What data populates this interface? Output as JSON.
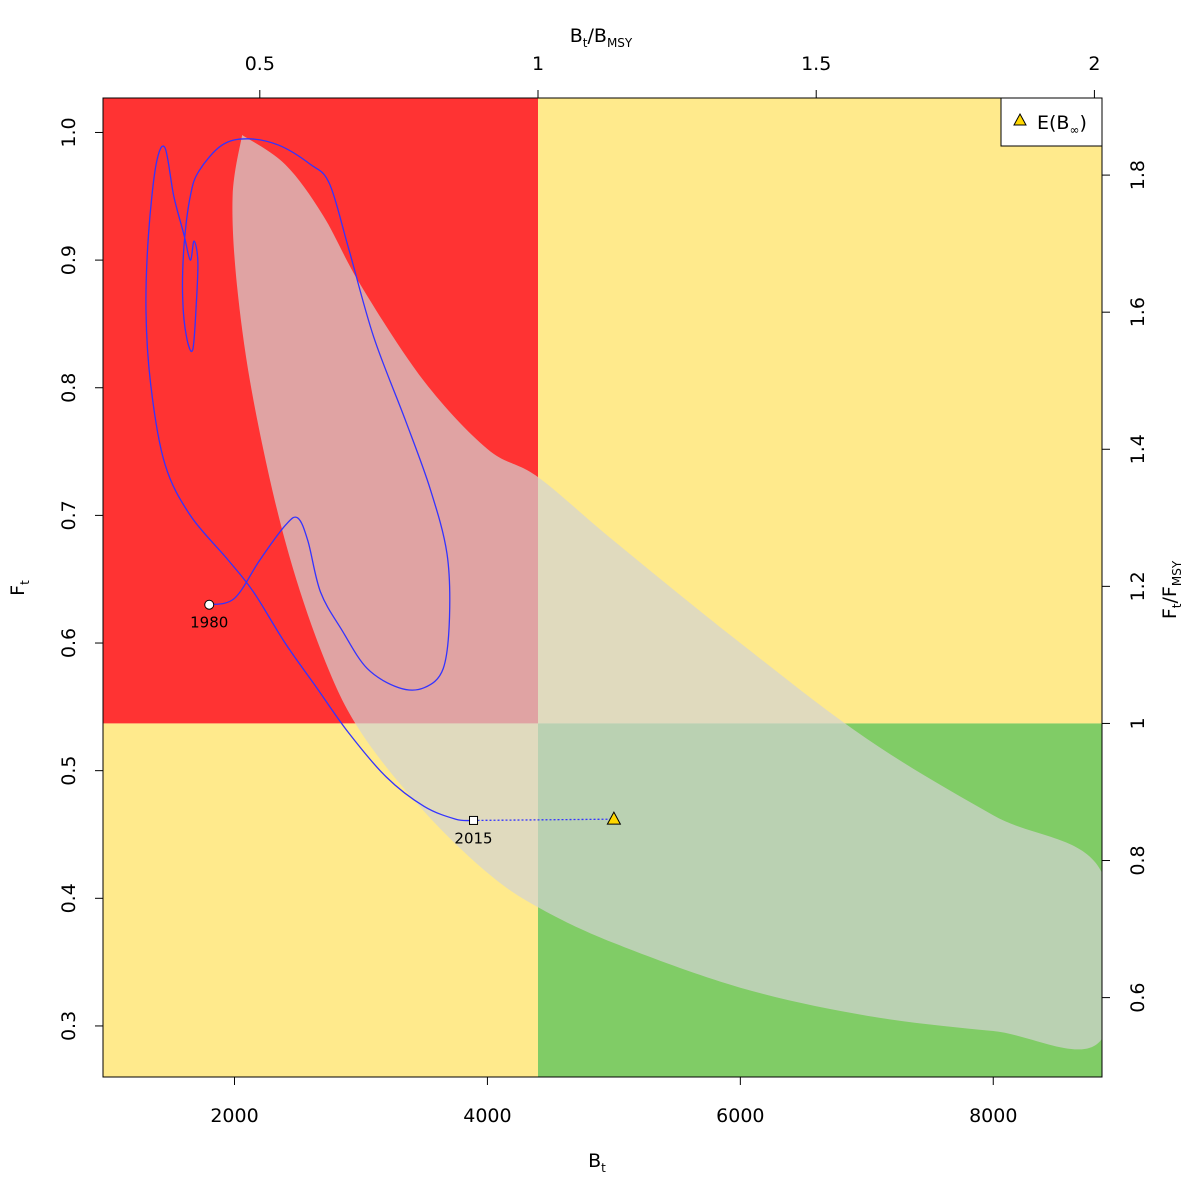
{
  "chart_data": {
    "type": "line",
    "xlabel": "B",
    "xlabel_sub": "t",
    "ylabel": "F",
    "ylabel_sub": "t",
    "top_label": {
      "num": "B",
      "num_sub": "t",
      "den": "B",
      "den_sub": "MSY"
    },
    "right_label": {
      "num": "F",
      "num_sub": "t",
      "den": "F",
      "den_sub": "MSY"
    },
    "xlim": [
      960,
      8860
    ],
    "ylim": [
      0.26,
      1.027
    ],
    "bmsy": 4400,
    "fmsy": 0.537,
    "x_ticks": [
      "2000",
      "4000",
      "6000",
      "8000"
    ],
    "y_ticks": [
      "0.3",
      "0.4",
      "0.5",
      "0.6",
      "0.7",
      "0.8",
      "0.9",
      "1.0"
    ],
    "top_ticks": [
      "0.5",
      "1",
      "1.5",
      "2"
    ],
    "right_ticks": [
      "0.6",
      "0.8",
      "1",
      "1.2",
      "1.4",
      "1.6",
      "1.8"
    ],
    "zone_colors": {
      "red": "#ff3333",
      "yellow": "#ffea8c",
      "green": "#80cc66",
      "region": "#d3d3d3",
      "trajectory": "#3333ff",
      "marker": "#ffd700"
    },
    "confidence_region": {
      "upper": [
        [
          2060,
          0.998
        ],
        [
          2400,
          0.975
        ],
        [
          2700,
          0.935
        ],
        [
          3000,
          0.88
        ],
        [
          3500,
          0.805
        ],
        [
          4000,
          0.752
        ],
        [
          4400,
          0.73
        ],
        [
          5000,
          0.68
        ],
        [
          6000,
          0.6
        ],
        [
          7000,
          0.525
        ],
        [
          8000,
          0.465
        ],
        [
          8860,
          0.42
        ]
      ],
      "lower": [
        [
          8860,
          0.29
        ],
        [
          8000,
          0.296
        ],
        [
          7000,
          0.308
        ],
        [
          6000,
          0.33
        ],
        [
          5000,
          0.365
        ],
        [
          4400,
          0.393
        ],
        [
          4000,
          0.42
        ],
        [
          3500,
          0.468
        ],
        [
          3000,
          0.53
        ],
        [
          2700,
          0.59
        ],
        [
          2400,
          0.68
        ],
        [
          2150,
          0.79
        ],
        [
          2020,
          0.88
        ],
        [
          1985,
          0.95
        ],
        [
          2060,
          0.998
        ]
      ]
    },
    "trajectory": [
      [
        1800,
        0.63
      ],
      [
        2000,
        0.635
      ],
      [
        2200,
        0.665
      ],
      [
        2400,
        0.692
      ],
      [
        2500,
        0.698
      ],
      [
        2580,
        0.68
      ],
      [
        2680,
        0.64
      ],
      [
        2850,
        0.61
      ],
      [
        3050,
        0.58
      ],
      [
        3300,
        0.565
      ],
      [
        3500,
        0.565
      ],
      [
        3650,
        0.58
      ],
      [
        3700,
        0.62
      ],
      [
        3680,
        0.67
      ],
      [
        3550,
        0.72
      ],
      [
        3350,
        0.775
      ],
      [
        3100,
        0.84
      ],
      [
        2900,
        0.91
      ],
      [
        2750,
        0.96
      ],
      [
        2600,
        0.975
      ],
      [
        2350,
        0.99
      ],
      [
        2100,
        0.995
      ],
      [
        1900,
        0.99
      ],
      [
        1720,
        0.97
      ],
      [
        1650,
        0.95
      ],
      [
        1600,
        0.91
      ],
      [
        1590,
        0.87
      ],
      [
        1620,
        0.84
      ],
      [
        1670,
        0.83
      ],
      [
        1700,
        0.87
      ],
      [
        1710,
        0.9
      ],
      [
        1680,
        0.915
      ],
      [
        1650,
        0.9
      ],
      [
        1600,
        0.92
      ],
      [
        1520,
        0.95
      ],
      [
        1450,
        0.988
      ],
      [
        1380,
        0.975
      ],
      [
        1320,
        0.92
      ],
      [
        1300,
        0.86
      ],
      [
        1340,
        0.8
      ],
      [
        1450,
        0.74
      ],
      [
        1650,
        0.7
      ],
      [
        1950,
        0.665
      ],
      [
        2150,
        0.64
      ],
      [
        2400,
        0.6
      ],
      [
        2650,
        0.565
      ],
      [
        2900,
        0.53
      ],
      [
        3200,
        0.495
      ],
      [
        3500,
        0.472
      ],
      [
        3750,
        0.462
      ],
      [
        3890,
        0.461
      ]
    ],
    "start_point": {
      "x": 1800,
      "y": 0.63,
      "label": "1980"
    },
    "end_point": {
      "x": 3890,
      "y": 0.461,
      "label": "2015"
    },
    "expected_point": {
      "x": 5000,
      "y": 0.462
    },
    "legend": {
      "label": "E(B",
      "sub": "∞",
      "close": ")",
      "position": "top-right"
    }
  }
}
